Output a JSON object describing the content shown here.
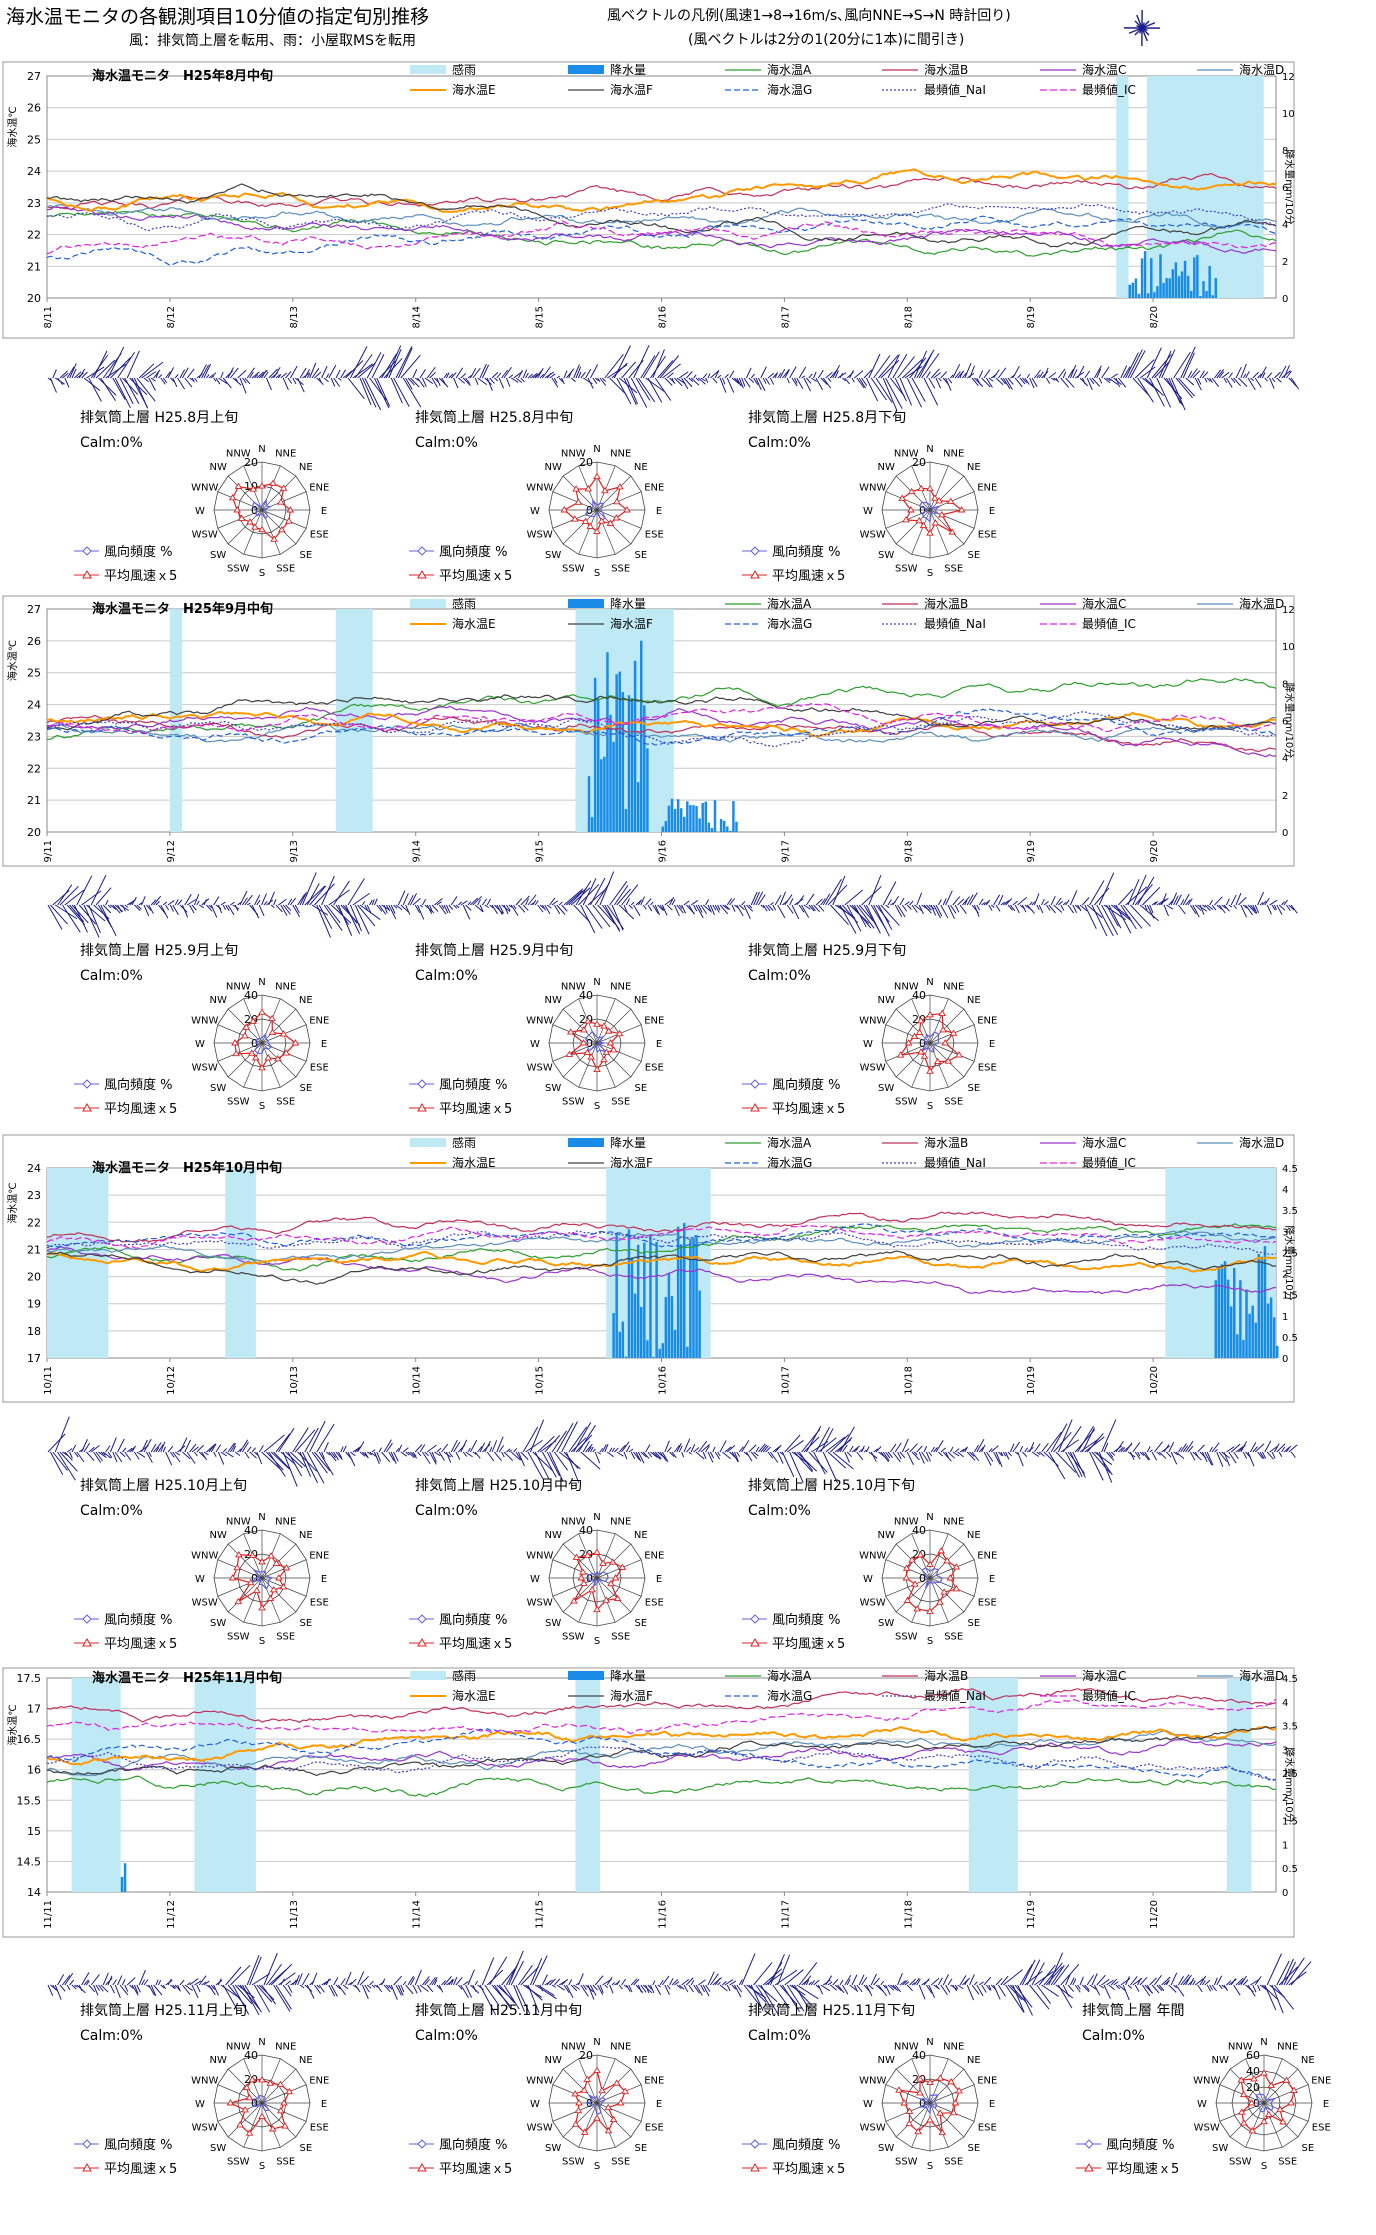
{
  "header": {
    "title": "海水温モニタの各観測項目10分値の指定旬別推移",
    "subtitle": "風：排気筒上層を転用、雨：小屋取MSを転用",
    "legend_note_1": "風ベクトルの凡例(風速1→8→16m/s､風向NNE→S→N 時計回り)",
    "legend_note_2": "(風ベクトルは2分の1(20分に1本)に間引き)"
  },
  "legend": {
    "rain_sense": "感雨",
    "precip": "降水量",
    "A": "海水温A",
    "B": "海水温B",
    "C": "海水温C",
    "D": "海水温D",
    "E": "海水温E",
    "F": "海水温F",
    "G": "海水温G",
    "NaI": "最頻値_NaI",
    "IC": "最頻値_IC"
  },
  "colors": {
    "A": "#2e9e2e",
    "B": "#c0305a",
    "C": "#9933cc",
    "D": "#5b8fb9",
    "E": "#ff9900",
    "F": "#404040",
    "G": "#1f5fdc",
    "NaI": "#4040c0",
    "IC": "#e020e0",
    "rain": "#bfeaf5",
    "precip": "#1a8ce8",
    "wind": "#1c1c8c",
    "radar_freq": "#6060e0",
    "radar_speed": "#e02020"
  },
  "chart_data": [
    {
      "type": "line",
      "title": "海水温モニタ　H25年8月中旬",
      "ylabel": "海水温℃",
      "y2label": "降水量mm/10分",
      "ylim": [
        20,
        27
      ],
      "y2lim": [
        0,
        12
      ],
      "yticks": [
        "20",
        "21",
        "22",
        "23",
        "24",
        "25",
        "26",
        "27"
      ],
      "y2ticks": [
        "0",
        "2",
        "4",
        "6",
        "8",
        "10",
        "12"
      ],
      "xticks": [
        "8/11",
        "8/12",
        "8/13",
        "8/14",
        "8/15",
        "8/16",
        "8/17",
        "8/18",
        "8/19",
        "8/20"
      ],
      "series_base": {
        "A": 22.6,
        "B": 22.9,
        "C": 22.8,
        "D": 22.9,
        "E": 23.2,
        "F": 23.2,
        "G": 21.3,
        "NaI": 22.6,
        "IC": 21.4
      }
    },
    {
      "type": "line",
      "title": "海水温モニタ　H25年9月中旬",
      "ylabel": "海水温℃",
      "y2label": "降水量mm/10分",
      "ylim": [
        20,
        27
      ],
      "y2lim": [
        0,
        12
      ],
      "yticks": [
        "20",
        "21",
        "22",
        "23",
        "24",
        "25",
        "26",
        "27"
      ],
      "y2ticks": [
        "0",
        "2",
        "4",
        "6",
        "8",
        "10",
        "12"
      ],
      "xticks": [
        "9/11",
        "9/12",
        "9/13",
        "9/14",
        "9/15",
        "9/16",
        "9/17",
        "9/18",
        "9/19",
        "9/20"
      ],
      "series_base": {
        "A": 22.9,
        "B": 23.4,
        "C": 23.3,
        "D": 23.3,
        "E": 23.5,
        "F": 23.3,
        "G": 23.2,
        "NaI": 23.2,
        "IC": 23.3
      }
    },
    {
      "type": "line",
      "title": "海水温モニタ　H25年10月中旬",
      "ylabel": "海水温℃",
      "y2label": "降水量mm/10分",
      "ylim": [
        17,
        24
      ],
      "y2lim": [
        0,
        4.5
      ],
      "yticks": [
        "17",
        "18",
        "19",
        "20",
        "21",
        "22",
        "23",
        "24"
      ],
      "y2ticks": [
        "0",
        "0.5",
        "1",
        "1.5",
        "2",
        "2.5",
        "3",
        "3.5",
        "4",
        "4.5"
      ],
      "xticks": [
        "10/11",
        "10/12",
        "10/13",
        "10/14",
        "10/15",
        "10/16",
        "10/17",
        "10/18",
        "10/19",
        "10/20"
      ],
      "series_base": {
        "A": 20.8,
        "B": 21.5,
        "C": 21.0,
        "D": 21.0,
        "E": 20.9,
        "F": 20.9,
        "G": 21.2,
        "NaI": 21.1,
        "IC": 21.3
      }
    },
    {
      "type": "line",
      "title": "海水温モニタ　H25年11月中旬",
      "ylabel": "海水温℃",
      "y2label": "降水量mm/10分",
      "ylim": [
        14,
        17.5
      ],
      "y2lim": [
        0,
        4.5
      ],
      "yticks": [
        "14",
        "14.5",
        "15",
        "15.5",
        "16",
        "16.5",
        "17",
        "17.5"
      ],
      "y2ticks": [
        "0",
        "0.5",
        "1",
        "1.5",
        "2",
        "2.5",
        "3",
        "3.5",
        "4",
        "4.5"
      ],
      "xticks": [
        "11/11",
        "11/12",
        "11/13",
        "11/14",
        "11/15",
        "11/16",
        "11/17",
        "11/18",
        "11/19",
        "11/20"
      ],
      "series_base": {
        "A": 15.8,
        "B": 17.0,
        "C": 16.2,
        "D": 16.0,
        "E": 16.2,
        "F": 16.0,
        "G": 16.2,
        "NaI": 16.1,
        "IC": 16.7
      }
    }
  ],
  "radar": {
    "directions": [
      "N",
      "NNE",
      "NE",
      "ENE",
      "E",
      "ESE",
      "SE",
      "SSE",
      "S",
      "SSW",
      "SW",
      "WSW",
      "W",
      "WNW",
      "NW",
      "NNW"
    ],
    "calm": "Calm:0%",
    "freq_label": "風向頻度 %",
    "speed_label": "平均風速ｘ5",
    "panels": [
      {
        "title": "排気筒上層 H25.8月上旬",
        "ticks": [
          "0",
          "10",
          "20"
        ]
      },
      {
        "title": "排気筒上層 H25.8月中旬",
        "ticks": [
          "0",
          "20"
        ]
      },
      {
        "title": "排気筒上層 H25.8月下旬",
        "ticks": [
          "0",
          "20"
        ]
      },
      {
        "title": "排気筒上層 H25.9月上旬",
        "ticks": [
          "0",
          "20",
          "40"
        ]
      },
      {
        "title": "排気筒上層 H25.9月中旬",
        "ticks": [
          "0",
          "20",
          "40"
        ]
      },
      {
        "title": "排気筒上層 H25.9月下旬",
        "ticks": [
          "0",
          "20",
          "40"
        ]
      },
      {
        "title": "排気筒上層 H25.10月上旬",
        "ticks": [
          "0",
          "20",
          "40"
        ]
      },
      {
        "title": "排気筒上層 H25.10月中旬",
        "ticks": [
          "0",
          "20",
          "40"
        ]
      },
      {
        "title": "排気筒上層 H25.10月下旬",
        "ticks": [
          "0",
          "20",
          "40"
        ]
      },
      {
        "title": "排気筒上層 H25.11月上旬",
        "ticks": [
          "0",
          "20",
          "40"
        ]
      },
      {
        "title": "排気筒上層 H25.11月中旬",
        "ticks": [
          "0",
          "20"
        ]
      },
      {
        "title": "排気筒上層 H25.11月下旬",
        "ticks": [
          "0",
          "20",
          "40"
        ]
      },
      {
        "title": "排気筒上層 年間",
        "ticks": [
          "0",
          "20",
          "40",
          "60"
        ]
      }
    ]
  }
}
